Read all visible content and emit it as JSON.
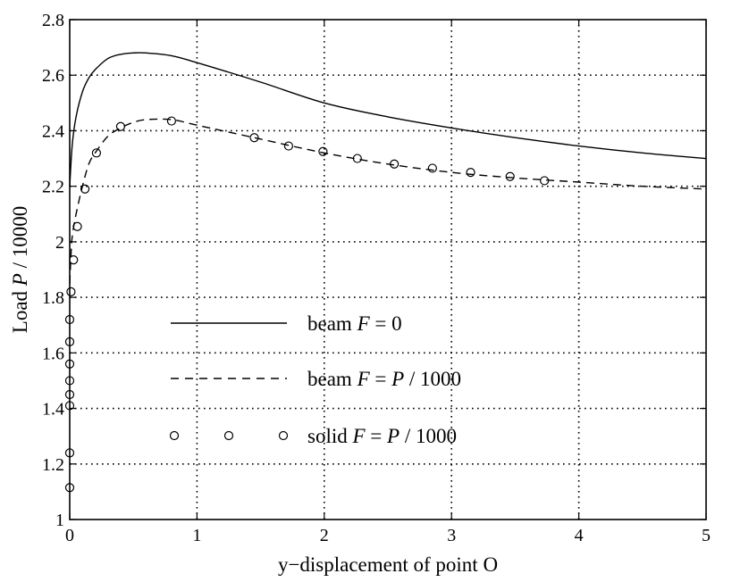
{
  "chart_data": {
    "type": "line",
    "xlabel": "y−displacement of point O",
    "ylabel": "Load  P / 10000",
    "xlim": [
      0,
      5
    ],
    "ylim": [
      1,
      2.8
    ],
    "x_ticks": [
      "0",
      "1",
      "2",
      "3",
      "4",
      "5"
    ],
    "y_ticks": [
      "1",
      "1.2",
      "1.4",
      "1.6",
      "1.8",
      "2",
      "2.2",
      "2.4",
      "2.6",
      "2.8"
    ],
    "grid": true,
    "grid_style": "dotted",
    "legend_position": "center-left",
    "series": [
      {
        "name": "beam  F = 0",
        "style": "solid",
        "x": [
          0,
          0.02,
          0.05,
          0.1,
          0.15,
          0.2,
          0.3,
          0.4,
          0.5,
          0.6,
          0.8,
          1.0,
          1.5,
          2.0,
          2.5,
          3.0,
          3.5,
          4.0,
          4.5,
          5.0
        ],
        "y": [
          2.2,
          2.35,
          2.45,
          2.54,
          2.59,
          2.62,
          2.66,
          2.675,
          2.68,
          2.68,
          2.67,
          2.645,
          2.575,
          2.5,
          2.45,
          2.41,
          2.375,
          2.345,
          2.32,
          2.3
        ]
      },
      {
        "name": "beam  F = P / 1000",
        "style": "dashed",
        "x": [
          0,
          0.01,
          0.02,
          0.05,
          0.1,
          0.15,
          0.2,
          0.3,
          0.4,
          0.5,
          0.6,
          0.8,
          1.0,
          1.5,
          2.0,
          2.5,
          3.0,
          3.5,
          4.0,
          4.5,
          5.0
        ],
        "y": [
          1.85,
          1.95,
          2.02,
          2.1,
          2.2,
          2.28,
          2.32,
          2.38,
          2.41,
          2.43,
          2.44,
          2.44,
          2.42,
          2.37,
          2.32,
          2.28,
          2.25,
          2.23,
          2.215,
          2.2,
          2.19
        ]
      },
      {
        "name": "solid  F = P / 1000",
        "style": "markers",
        "marker": "open-circle",
        "x": [
          0,
          0,
          0,
          0,
          0,
          0,
          0,
          0,
          0.01,
          0.03,
          0.06,
          0.12,
          0.21,
          0.4,
          0.8,
          1.45,
          1.72,
          1.99,
          2.26,
          2.55,
          2.85,
          3.15,
          3.46,
          3.73
        ],
        "y": [
          1.115,
          1.24,
          1.41,
          1.45,
          1.5,
          1.56,
          1.64,
          1.72,
          1.82,
          1.935,
          2.055,
          2.19,
          2.32,
          2.415,
          2.435,
          2.375,
          2.345,
          2.325,
          2.3,
          2.28,
          2.265,
          2.25,
          2.235,
          2.22
        ]
      }
    ]
  },
  "legend": {
    "items": [
      {
        "prefix": "beam  ",
        "formula": "F",
        "suffix": " = 0"
      },
      {
        "prefix": "beam  ",
        "formula": "F",
        "suffix": " = ",
        "formula2": "P",
        "suffix2": " / 1000"
      },
      {
        "prefix": "solid  ",
        "formula": "F",
        "suffix": " = ",
        "formula2": "P",
        "suffix2": " / 1000"
      }
    ]
  },
  "ylabel_parts": {
    "word": "Load  ",
    "symbol": "P",
    "rest": " / 10000"
  }
}
